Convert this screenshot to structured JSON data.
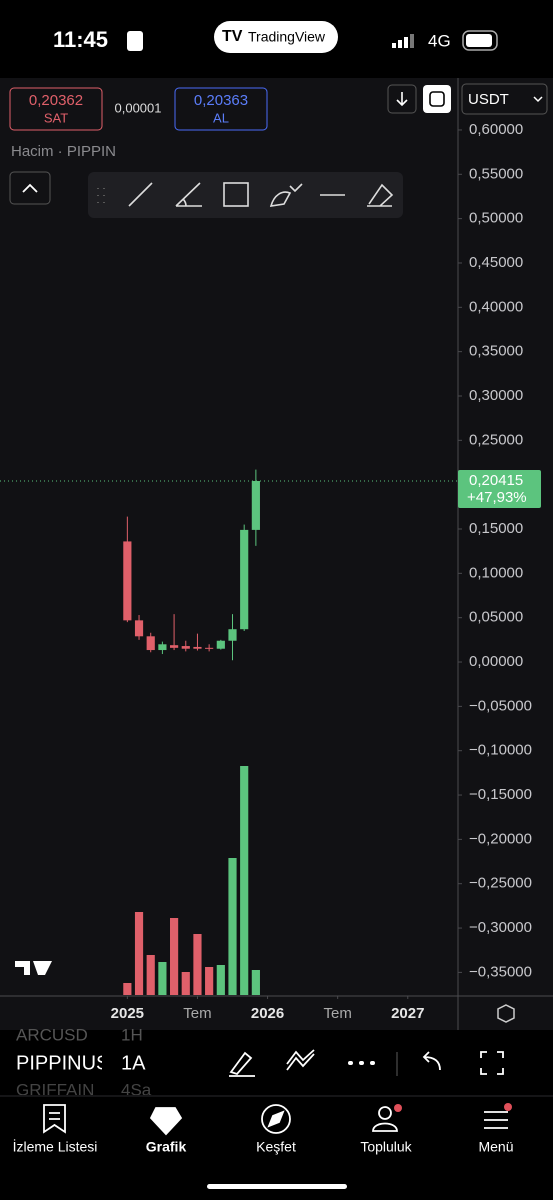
{
  "status_bar": {
    "time": "11:45",
    "brand": "TradingView",
    "network": "4G"
  },
  "order_panel": {
    "sell_price": "0,20362",
    "sell_label": "SAT",
    "spread": "0,00001",
    "buy_price": "0,20363",
    "buy_label": "AL",
    "currency": "USDT"
  },
  "chart_data": {
    "type": "candlestick",
    "subtitle": "Hacim · PIPPIN",
    "x": [
      0,
      1,
      2,
      3,
      4,
      5,
      6,
      7,
      8,
      9,
      10,
      11
    ],
    "open": [
      0.136,
      0.047,
      0.029,
      0.0135,
      0.019,
      0.018,
      0.017,
      0.016,
      0.015,
      0.024,
      0.037,
      0.149
    ],
    "high": [
      0.164,
      0.053,
      0.033,
      0.023,
      0.054,
      0.024,
      0.032,
      0.02,
      0.025,
      0.054,
      0.155,
      0.217
    ],
    "low": [
      0.045,
      0.025,
      0.011,
      0.009,
      0.0135,
      0.012,
      0.013,
      0.012,
      0.014,
      0.002,
      0.035,
      0.131
    ],
    "close": [
      0.047,
      0.029,
      0.0135,
      0.02,
      0.016,
      0.015,
      0.015,
      0.015,
      0.024,
      0.037,
      0.149,
      0.20415
    ],
    "volume": [
      12,
      83,
      40,
      33,
      77,
      23,
      61,
      28,
      30,
      137,
      229,
      25
    ],
    "volume_lim": [
      0,
      240
    ],
    "up_color": "#5cc47e",
    "down_color": "#e0606a",
    "xlim": [
      -10.9,
      28.3
    ],
    "xticks": [
      {
        "value": 0,
        "label": "2025"
      },
      {
        "value": 6,
        "label": "Tem"
      },
      {
        "value": 12,
        "label": "2026"
      },
      {
        "value": 18,
        "label": "Tem"
      },
      {
        "value": 24,
        "label": "2027"
      }
    ],
    "ylim": [
      -0.3755,
      0.6586
    ],
    "yticks": [
      {
        "value": 0.6,
        "label": "0,60000"
      },
      {
        "value": 0.55,
        "label": "0,55000"
      },
      {
        "value": 0.5,
        "label": "0,50000"
      },
      {
        "value": 0.45,
        "label": "0,45000"
      },
      {
        "value": 0.4,
        "label": "0,40000"
      },
      {
        "value": 0.35,
        "label": "0,35000"
      },
      {
        "value": 0.3,
        "label": "0,30000"
      },
      {
        "value": 0.25,
        "label": "0,25000"
      },
      {
        "value": 0.2,
        "label": "0,20000"
      },
      {
        "value": 0.15,
        "label": "0,15000"
      },
      {
        "value": 0.1,
        "label": "0,10000"
      },
      {
        "value": 0.05,
        "label": "0,05000"
      },
      {
        "value": 0,
        "label": "0,00000"
      },
      {
        "value": -0.05,
        "label": "−0,05000"
      },
      {
        "value": -0.1,
        "label": "−0,10000"
      },
      {
        "value": -0.15,
        "label": "−0,15000"
      },
      {
        "value": -0.2,
        "label": "−0,20000"
      },
      {
        "value": -0.25,
        "label": "−0,25000"
      },
      {
        "value": -0.3,
        "label": "−0,30000"
      },
      {
        "value": -0.35,
        "label": "−0,35000"
      }
    ],
    "last_price": {
      "value": 0.20415,
      "label": "0,20415"
    },
    "change_label": "+47,93%"
  },
  "symbol_bar": {
    "symbols": [
      "ARCUSD",
      "PIPPINUS",
      "GRIFFAIN"
    ],
    "intervals": [
      "1H",
      "1A",
      "4Sa"
    ]
  },
  "nav": {
    "items": [
      "İzleme Listesi",
      "Grafik",
      "Keşfet",
      "Topluluk",
      "Menü"
    ]
  }
}
